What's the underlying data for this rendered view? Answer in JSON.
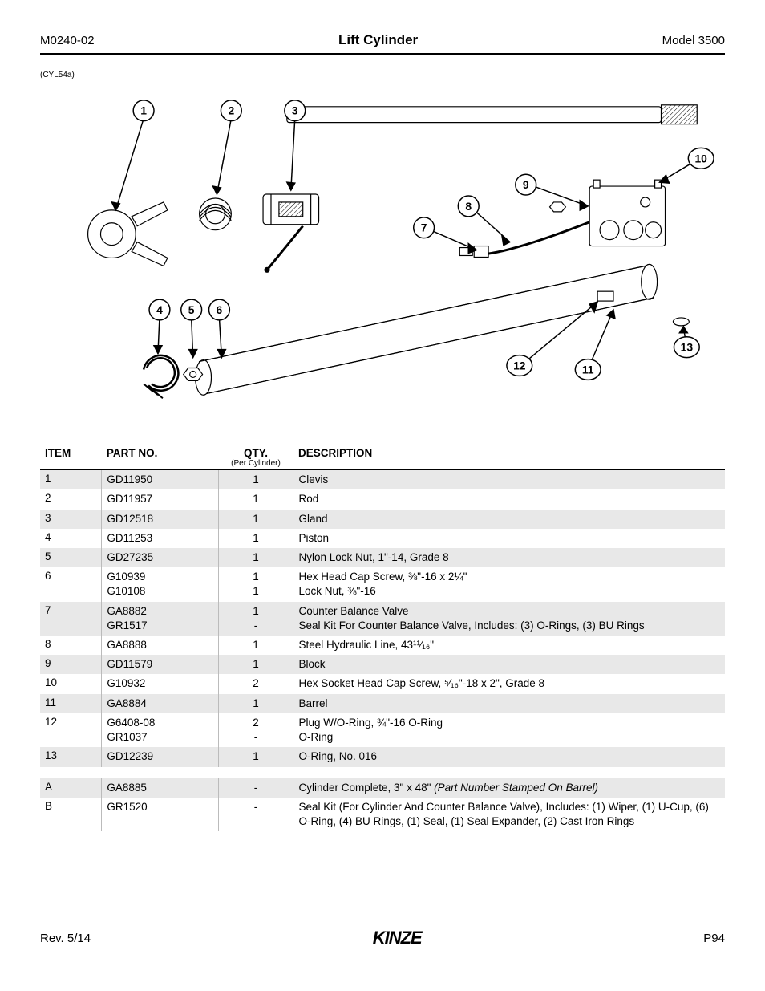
{
  "header": {
    "doc_id": "M0240-02",
    "title": "Lift Cylinder",
    "model": "Model 3500"
  },
  "diagram": {
    "ref": "(CYL54a)",
    "callouts": [
      "1",
      "2",
      "3",
      "4",
      "5",
      "6",
      "7",
      "8",
      "9",
      "10",
      "11",
      "12",
      "13"
    ],
    "stroke_color": "#000000",
    "callout_font_size": 14,
    "callout_font_weight": "bold"
  },
  "table": {
    "headers": {
      "item": "ITEM",
      "part": "PART NO.",
      "qty": "QTY.",
      "qty_sub": "(Per Cylinder)",
      "desc": "DESCRIPTION"
    },
    "col_widths_pct": [
      9,
      17,
      11,
      63
    ],
    "shade_color": "#e8e8e8",
    "border_color": "#bbbbbb",
    "rows": [
      {
        "item": "1",
        "part": "GD11950",
        "qty": "1",
        "desc": "Clevis",
        "shade": true
      },
      {
        "item": "2",
        "part": "GD11957",
        "qty": "1",
        "desc": "Rod",
        "shade": false
      },
      {
        "item": "3",
        "part": "GD12518",
        "qty": "1",
        "desc": "Gland",
        "shade": true
      },
      {
        "item": "4",
        "part": "GD11253",
        "qty": "1",
        "desc": "Piston",
        "shade": false
      },
      {
        "item": "5",
        "part": "GD27235",
        "qty": "1",
        "desc": "Nylon Lock Nut, 1\"-14, Grade 8",
        "shade": true
      },
      {
        "item": "6",
        "part": "G10939\nG10108",
        "qty": "1\n1",
        "desc": "Hex Head Cap Screw, ⅜\"-16 x 2¼\"\nLock Nut, ⅜\"-16",
        "shade": false
      },
      {
        "item": "7",
        "part": "GA8882\nGR1517",
        "qty": "1\n-",
        "desc": "Counter Balance Valve\nSeal Kit For Counter Balance Valve, Includes: (3) O-Rings, (3) BU Rings",
        "shade": true
      },
      {
        "item": "8",
        "part": "GA8888",
        "qty": "1",
        "desc": "Steel Hydraulic Line, 43¹¹⁄₁₆\"",
        "shade": false
      },
      {
        "item": "9",
        "part": "GD11579",
        "qty": "1",
        "desc": "Block",
        "shade": true
      },
      {
        "item": "10",
        "part": "G10932",
        "qty": "2",
        "desc": "Hex Socket Head Cap Screw, ⁵⁄₁₆\"-18 x 2\", Grade 8",
        "shade": false
      },
      {
        "item": "11",
        "part": "GA8884",
        "qty": "1",
        "desc": "Barrel",
        "shade": true
      },
      {
        "item": "12",
        "part": "G6408-08\nGR1037",
        "qty": "2\n-",
        "desc": "Plug W/O-Ring, ¾\"-16 O-Ring\nO-Ring",
        "shade": false
      },
      {
        "item": "13",
        "part": "GD12239",
        "qty": "1",
        "desc": "O-Ring, No. 016",
        "shade": true
      }
    ],
    "rows2": [
      {
        "item": "A",
        "part": "GA8885",
        "qty": "-",
        "desc": "Cylinder Complete, 3\" x 48\" ",
        "desc_italic": "(Part Number Stamped On Barrel)",
        "shade": true
      },
      {
        "item": "B",
        "part": "GR1520",
        "qty": "-",
        "desc": "Seal Kit (For Cylinder And Counter Balance Valve), Includes:  (1) Wiper, (1) U-Cup, (6) O-Ring, (4) BU Rings, (1) Seal, (1) Seal Expander, (2) Cast Iron Rings",
        "shade": false
      }
    ]
  },
  "footer": {
    "rev": "Rev. 5/14",
    "logo": "KINZE",
    "page": "P94"
  }
}
